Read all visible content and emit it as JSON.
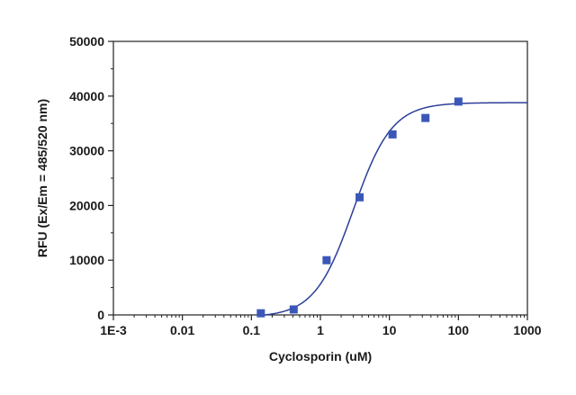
{
  "chart_data": {
    "type": "scatter",
    "xlabel": "Cyclosporin (uM)",
    "ylabel": "RFU (Ex/Em = 485/520 nm)",
    "x_scale": "log",
    "xlim": [
      0.001,
      1000
    ],
    "ylim": [
      0,
      50000
    ],
    "x_tick_values": [
      0.001,
      0.01,
      0.1,
      1,
      10,
      100,
      1000
    ],
    "x_tick_labels": [
      "1E-3",
      "0.01",
      "0.1",
      "1",
      "10",
      "100",
      "1000"
    ],
    "y_tick_values": [
      0,
      10000,
      20000,
      30000,
      40000,
      50000
    ],
    "y_tick_labels": [
      "0",
      "10000",
      "20000",
      "30000",
      "40000",
      "50000"
    ],
    "grid": false,
    "marker_color": "#3a57b8",
    "fit_color": "#2d3e98",
    "series": [
      {
        "points": [
          {
            "x": 0.137,
            "y": 300
          },
          {
            "x": 0.41,
            "y": 1000
          },
          {
            "x": 1.23,
            "y": 10000
          },
          {
            "x": 3.7,
            "y": 21500
          },
          {
            "x": 11.1,
            "y": 33000
          },
          {
            "x": 33.3,
            "y": 36000
          },
          {
            "x": 100,
            "y": 39000
          }
        ]
      }
    ],
    "fit": {
      "model": "four-parameter logistic",
      "bottom": -400,
      "top": 38800,
      "ec50": 3.0,
      "hill": 1.55
    }
  }
}
